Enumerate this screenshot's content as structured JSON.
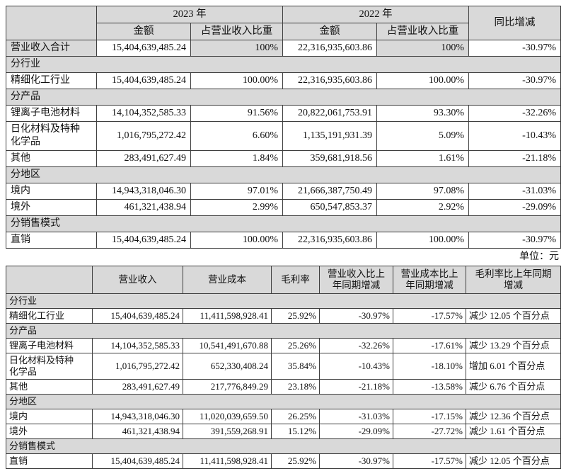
{
  "unit_label": "单位：元",
  "colors": {
    "header_bg": "#d9d9d9",
    "section_bg": "#d9d9d9",
    "shade_bg": "#d9d9d9",
    "border": "#3f3f3f",
    "text": "#111111"
  },
  "table1": {
    "year_headers": [
      "2023 年",
      "2022 年"
    ],
    "yoy_header": "同比增减",
    "sub_headers": [
      "金额",
      "占营业收入比重",
      "金额",
      "占营业收入比重"
    ],
    "rows": [
      {
        "type": "total",
        "cells": [
          "营业收入合计",
          "15,404,639,485.24",
          "100%",
          "22,316,935,603.86",
          "100%",
          "-30.97%"
        ]
      },
      {
        "type": "section",
        "label": "分行业"
      },
      {
        "type": "data",
        "cells": [
          "精细化工行业",
          "15,404,639,485.24",
          "100.00%",
          "22,316,935,603.86",
          "100.00%",
          "-30.97%"
        ]
      },
      {
        "type": "section",
        "label": "分产品"
      },
      {
        "type": "data",
        "cells": [
          "锂离子电池材料",
          "14,104,352,585.33",
          "91.56%",
          "20,822,061,753.91",
          "93.30%",
          "-32.26%"
        ]
      },
      {
        "type": "data",
        "cells": [
          "日化材料及特种\n化学品",
          "1,016,795,272.42",
          "6.60%",
          "1,135,191,931.39",
          "5.09%",
          "-10.43%"
        ]
      },
      {
        "type": "data",
        "cells": [
          "其他",
          "283,491,627.49",
          "1.84%",
          "359,681,918.56",
          "1.61%",
          "-21.18%"
        ]
      },
      {
        "type": "section",
        "label": "分地区"
      },
      {
        "type": "data",
        "cells": [
          "境内",
          "14,943,318,046.30",
          "97.01%",
          "21,666,387,750.49",
          "97.08%",
          "-31.03%"
        ]
      },
      {
        "type": "data",
        "cells": [
          "境外",
          "461,321,438.94",
          "2.99%",
          "650,547,853.37",
          "2.92%",
          "-29.09%"
        ]
      },
      {
        "type": "section",
        "label": "分销售模式"
      },
      {
        "type": "data",
        "cells": [
          "直销",
          "15,404,639,485.24",
          "100.00%",
          "22,316,935,603.86",
          "100.00%",
          "-30.97%"
        ]
      }
    ]
  },
  "table2": {
    "headers": [
      "",
      "营业收入",
      "营业成本",
      "毛利率",
      "营业收入比上\n年同期增减",
      "营业成本比上\n年同期增减",
      "毛利率比上年同期\n增减"
    ],
    "rows": [
      {
        "type": "section",
        "label": "分行业"
      },
      {
        "type": "data",
        "cells": [
          "精细化工行业",
          "15,404,639,485.24",
          "11,411,598,928.41",
          "25.92%",
          "-30.97%",
          "-17.57%",
          "减少 12.05 个百分点"
        ]
      },
      {
        "type": "section",
        "label": "分产品"
      },
      {
        "type": "data",
        "cells": [
          "锂离子电池材料",
          "14,104,352,585.33",
          "10,541,491,670.88",
          "25.26%",
          "-32.26%",
          "-17.61%",
          "减少 13.29 个百分点"
        ]
      },
      {
        "type": "data",
        "cells": [
          "日化材料及特种\n化学品",
          "1,016,795,272.42",
          "652,330,408.24",
          "35.84%",
          "-10.43%",
          "-18.10%",
          "增加 6.01 个百分点"
        ]
      },
      {
        "type": "data",
        "cells": [
          "其他",
          "283,491,627.49",
          "217,776,849.29",
          "23.18%",
          "-21.18%",
          "-13.58%",
          "减少 6.76 个百分点"
        ]
      },
      {
        "type": "section",
        "label": "分地区"
      },
      {
        "type": "data",
        "cells": [
          "境内",
          "14,943,318,046.30",
          "11,020,039,659.50",
          "26.25%",
          "-31.03%",
          "-17.15%",
          "减少 12.36 个百分点"
        ]
      },
      {
        "type": "data",
        "cells": [
          "境外",
          "461,321,438.94",
          "391,559,268.91",
          "15.12%",
          "-29.09%",
          "-27.72%",
          "减少 1.61 个百分点"
        ]
      },
      {
        "type": "section",
        "label": "分销售模式"
      },
      {
        "type": "data",
        "cells": [
          "直销",
          "15,404,639,485.24",
          "11,411,598,928.41",
          "25.92%",
          "-30.97%",
          "-17.57%",
          "减少 12.05 个百分点"
        ]
      }
    ]
  }
}
